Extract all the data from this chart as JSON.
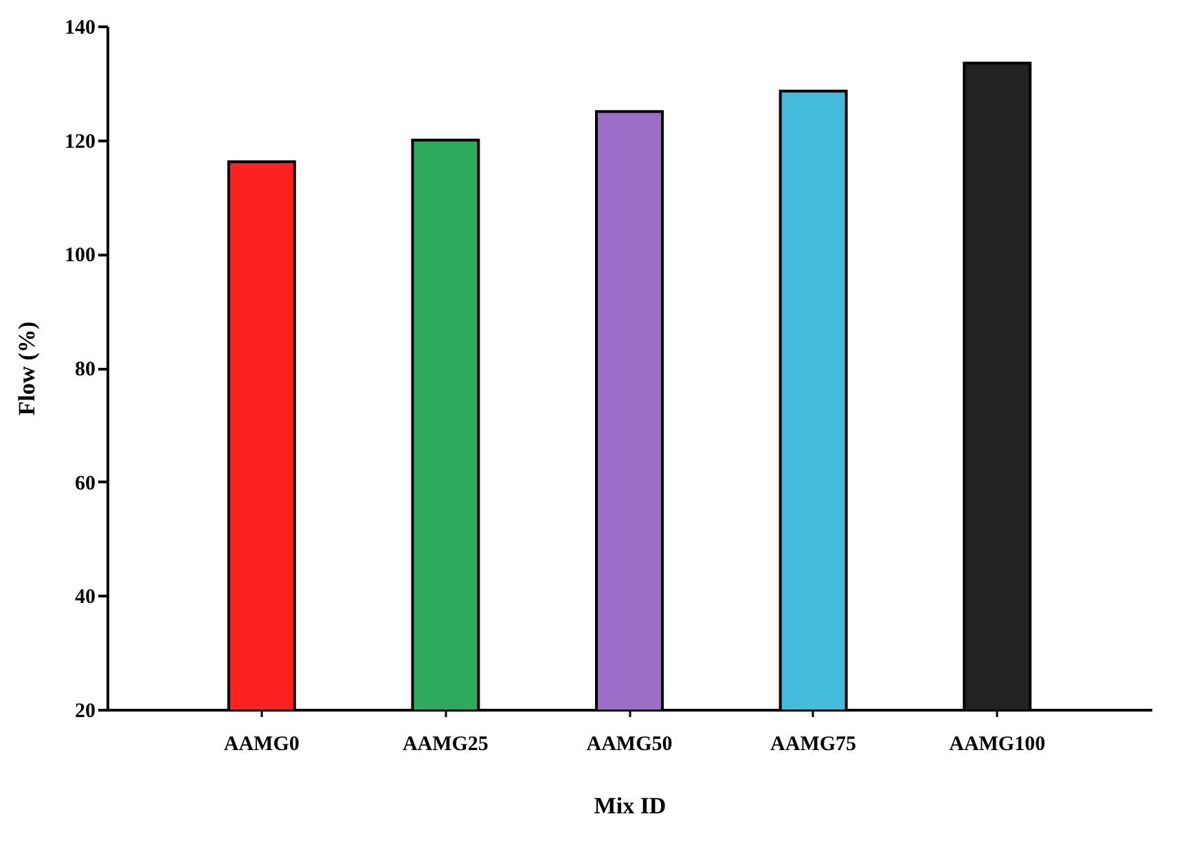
{
  "chart_data": {
    "type": "bar",
    "xlabel": "Mix ID",
    "ylabel": "Flow (%)",
    "categories": [
      "AAMG0",
      "AAMG25",
      "AAMG50",
      "AAMG75",
      "AAMG100"
    ],
    "values": [
      116.2,
      120,
      125,
      128.6,
      133.5
    ],
    "colors": [
      "#ff2020",
      "#2eaa5c",
      "#9b6fc8",
      "#44bbdd",
      "#222222"
    ],
    "ylim": [
      20,
      140
    ],
    "yticks": [
      20,
      40,
      60,
      80,
      100,
      120,
      140
    ],
    "grid": false
  }
}
